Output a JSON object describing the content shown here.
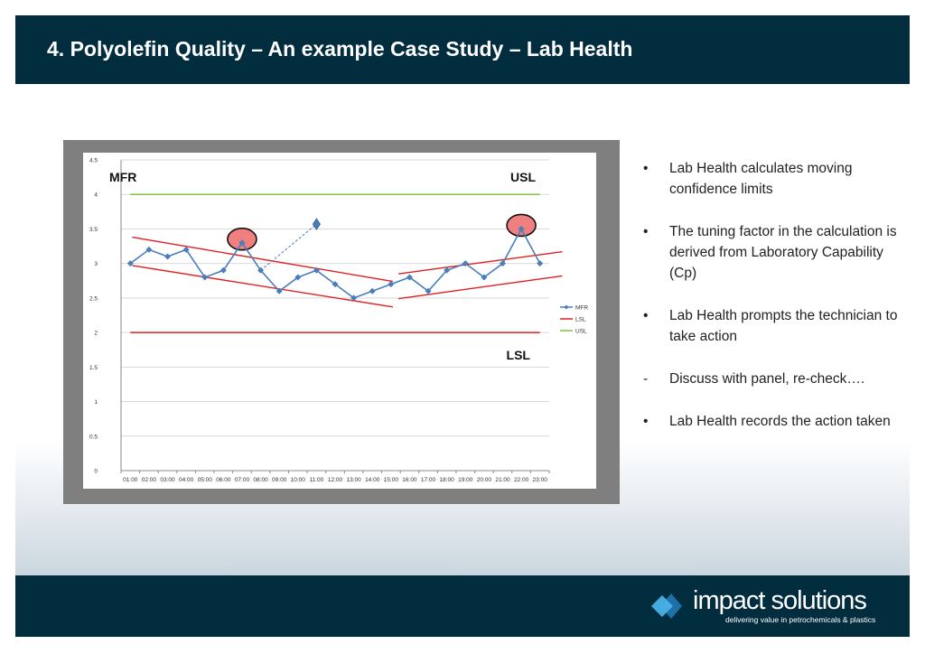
{
  "slide": {
    "title": "4.  Polyolefin Quality – An example Case Study – Lab Health"
  },
  "bullets": [
    {
      "marker": "•",
      "text": "Lab Health calculates moving confidence limits"
    },
    {
      "marker": "•",
      "text": "The tuning factor in the calculation is derived from Laboratory Capability (Cp)"
    },
    {
      "marker": "•",
      "text": "Lab Health prompts the technician to take action"
    },
    {
      "marker": "-",
      "text": "Discuss with panel, re-check…."
    },
    {
      "marker": "•",
      "text": "Lab Health records the action taken"
    }
  ],
  "logo": {
    "name": "impact solutions",
    "tagline": "delivering value in petrochemicals & plastics",
    "colors": {
      "diamond_outer": "#1f6fa8",
      "diamond_inner": "#4ab1e6"
    }
  },
  "colors": {
    "header_bg": "#022d3f",
    "mfr": "#4a7ebb",
    "lsl": "#e02020",
    "usl": "#7fc241",
    "highlight_fill": "#f08080",
    "highlight_stroke": "#111111"
  },
  "chart_data": {
    "type": "line",
    "categories": [
      "01:00",
      "02:00",
      "03:00",
      "04:00",
      "05:00",
      "06:00",
      "07:00",
      "08:00",
      "09:00",
      "10:00",
      "11:00",
      "12:00",
      "13:00",
      "14:00",
      "15:00",
      "16:00",
      "17:00",
      "18:00",
      "19:00",
      "20:00",
      "21:00",
      "22:00",
      "23:00"
    ],
    "ylim": [
      0,
      4.5
    ],
    "yticks": [
      "0",
      "0.5",
      "1",
      "1.5",
      "2",
      "2.5",
      "3",
      "3.5",
      "4",
      "4.5"
    ],
    "grid": true,
    "legend_position": "right",
    "series": [
      {
        "name": "MFR",
        "values": [
          3.0,
          3.2,
          3.1,
          3.2,
          2.8,
          2.9,
          3.3,
          2.9,
          2.6,
          2.8,
          2.9,
          2.7,
          2.5,
          2.6,
          2.7,
          2.8,
          2.6,
          2.9,
          3.0,
          2.8,
          3.0,
          3.5,
          3.0
        ],
        "color": "#4a7ebb",
        "marker": "diamond"
      },
      {
        "name": "LSL",
        "values": [
          2,
          2,
          2,
          2,
          2,
          2,
          2,
          2,
          2,
          2,
          2,
          2,
          2,
          2,
          2,
          2,
          2,
          2,
          2,
          2,
          2,
          2,
          2
        ],
        "color": "#e02020"
      },
      {
        "name": "USL",
        "values": [
          4,
          4,
          4,
          4,
          4,
          4,
          4,
          4,
          4,
          4,
          4,
          4,
          4,
          4,
          4,
          4,
          4,
          4,
          4,
          4,
          4,
          4,
          4
        ],
        "color": "#7fc241"
      }
    ],
    "annotations": {
      "labels": [
        {
          "text": "MFR",
          "pos": "top-left"
        },
        {
          "text": "USL",
          "pos": "top-right"
        },
        {
          "text": "LSL",
          "pos": "middle-right"
        }
      ],
      "highlighted_points": [
        "07:00",
        "22:00"
      ],
      "outlier": {
        "from": "08:00",
        "to": "11:00",
        "value": 3.57
      },
      "confidence_bands": [
        {
          "x_start": 0.6,
          "x_end": 14.6,
          "upper": [
            3.38,
            2.74
          ],
          "lower": [
            2.97,
            2.37
          ]
        },
        {
          "x_start": 14.9,
          "x_end": 23.7,
          "upper": [
            2.85,
            3.17
          ],
          "lower": [
            2.49,
            2.82
          ]
        }
      ]
    }
  }
}
